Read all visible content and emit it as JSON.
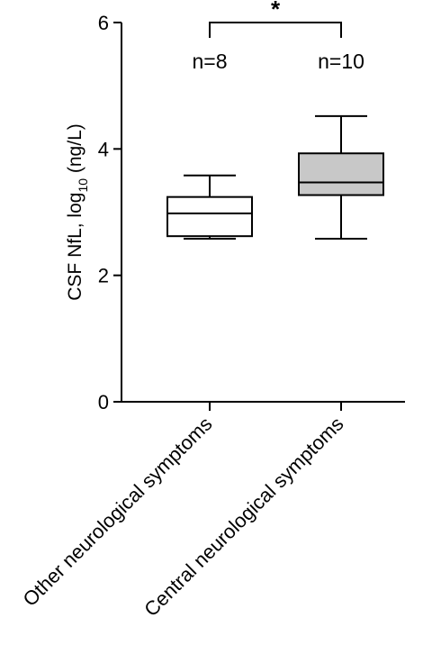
{
  "chart_data": {
    "type": "box",
    "ylabel": {
      "main": "CSF NfL, log",
      "sub": "10",
      "unit": " (ng/L)"
    },
    "ylim": [
      0,
      6
    ],
    "yticks": [
      0,
      2,
      4,
      6
    ],
    "grid": false,
    "legend": "none",
    "categories": [
      "Other neurological symptoms",
      "Central neurological symptoms"
    ],
    "series": [
      {
        "category": "Other neurological symptoms",
        "n_label": "n=8",
        "whisker_low": 2.58,
        "q1": 2.62,
        "median": 2.98,
        "q3": 3.24,
        "whisker_high": 3.58,
        "fill": "#ffffff"
      },
      {
        "category": "Central neurological symptoms",
        "n_label": "n=10",
        "whisker_low": 2.58,
        "q1": 3.27,
        "median": 3.47,
        "q3": 3.93,
        "whisker_high": 4.52,
        "fill": "#c8c8c8"
      }
    ],
    "significance": {
      "label": "*",
      "between": [
        0,
        1
      ]
    }
  }
}
